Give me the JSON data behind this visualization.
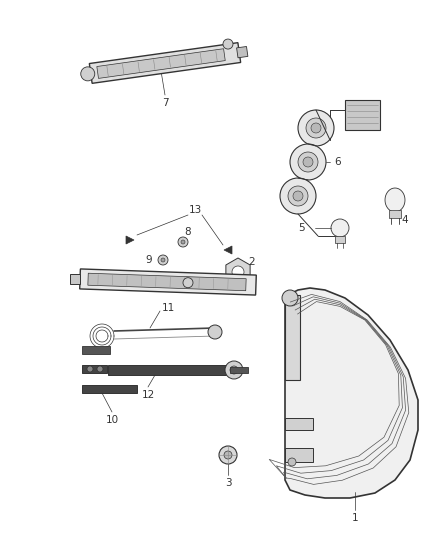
{
  "bg_color": "#ffffff",
  "line_color": "#333333",
  "label_fontsize": 7.5,
  "fig_width": 4.38,
  "fig_height": 5.33,
  "dpi": 100
}
